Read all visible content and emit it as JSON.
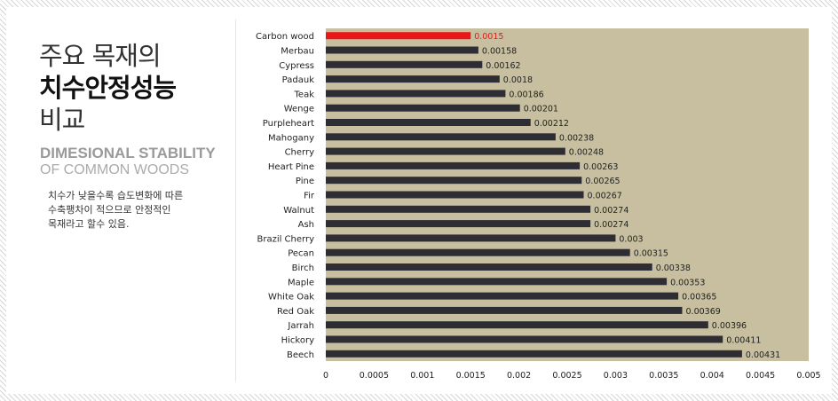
{
  "left_panel": {
    "title_ko_line1": "주요 목재의",
    "title_ko_line2": "치수안정성능",
    "title_ko_line3": "비교",
    "title_en_line1": "DIMESIONAL STABILITY",
    "title_en_line2": "OF COMMON WOODS",
    "description_lines": [
      "치수가 낮을수록 습도변화에 따른",
      "수축팽차이 적으므로 안정적인",
      "목재라고 할수 있음."
    ]
  },
  "colors": {
    "plot_background": "#c7bf9f",
    "bar": "#2e2d33",
    "highlight_bar": "#e81818",
    "highlight_label": "#e81818",
    "label": "#222222"
  },
  "chart_data": {
    "type": "bar",
    "orientation": "horizontal",
    "categories": [
      "Carbon wood",
      "Merbau",
      "Cypress",
      "Padauk",
      "Teak",
      "Wenge",
      "Purpleheart",
      "Mahogany",
      "Cherry",
      "Heart Pine",
      "Pine",
      "Fir",
      "Walnut",
      "Ash",
      "Brazil Cherry",
      "Pecan",
      "Birch",
      "Maple",
      "White Oak",
      "Red Oak",
      "Jarrah",
      "Hickory",
      "Beech"
    ],
    "values": [
      0.0015,
      0.00158,
      0.00162,
      0.0018,
      0.00186,
      0.00201,
      0.00212,
      0.00238,
      0.00248,
      0.00263,
      0.00265,
      0.00267,
      0.00274,
      0.00274,
      0.003,
      0.00315,
      0.00338,
      0.00353,
      0.00365,
      0.00369,
      0.00396,
      0.00411,
      0.00431
    ],
    "value_labels": [
      "0.0015",
      "0.00158",
      "0.00162",
      "0.0018",
      "0.00186",
      "0.00201",
      "0.00212",
      "0.00238",
      "0.00248",
      "0.00263",
      "0.00265",
      "0.00267",
      "0.00274",
      "0.00274",
      "0.003",
      "0.00315",
      "0.00338",
      "0.00353",
      "0.00365",
      "0.00369",
      "0.00396",
      "0.00411",
      "0.00431"
    ],
    "highlight": "Carbon wood",
    "xlim": [
      0,
      0.005
    ],
    "x_ticks": [
      "0",
      "0.0005",
      "0.001",
      "0.0015",
      "0.002",
      "0.0025",
      "0.003",
      "0.0035",
      "0.004",
      "0.0045",
      "0.005"
    ],
    "grid": false,
    "legend": "none"
  }
}
